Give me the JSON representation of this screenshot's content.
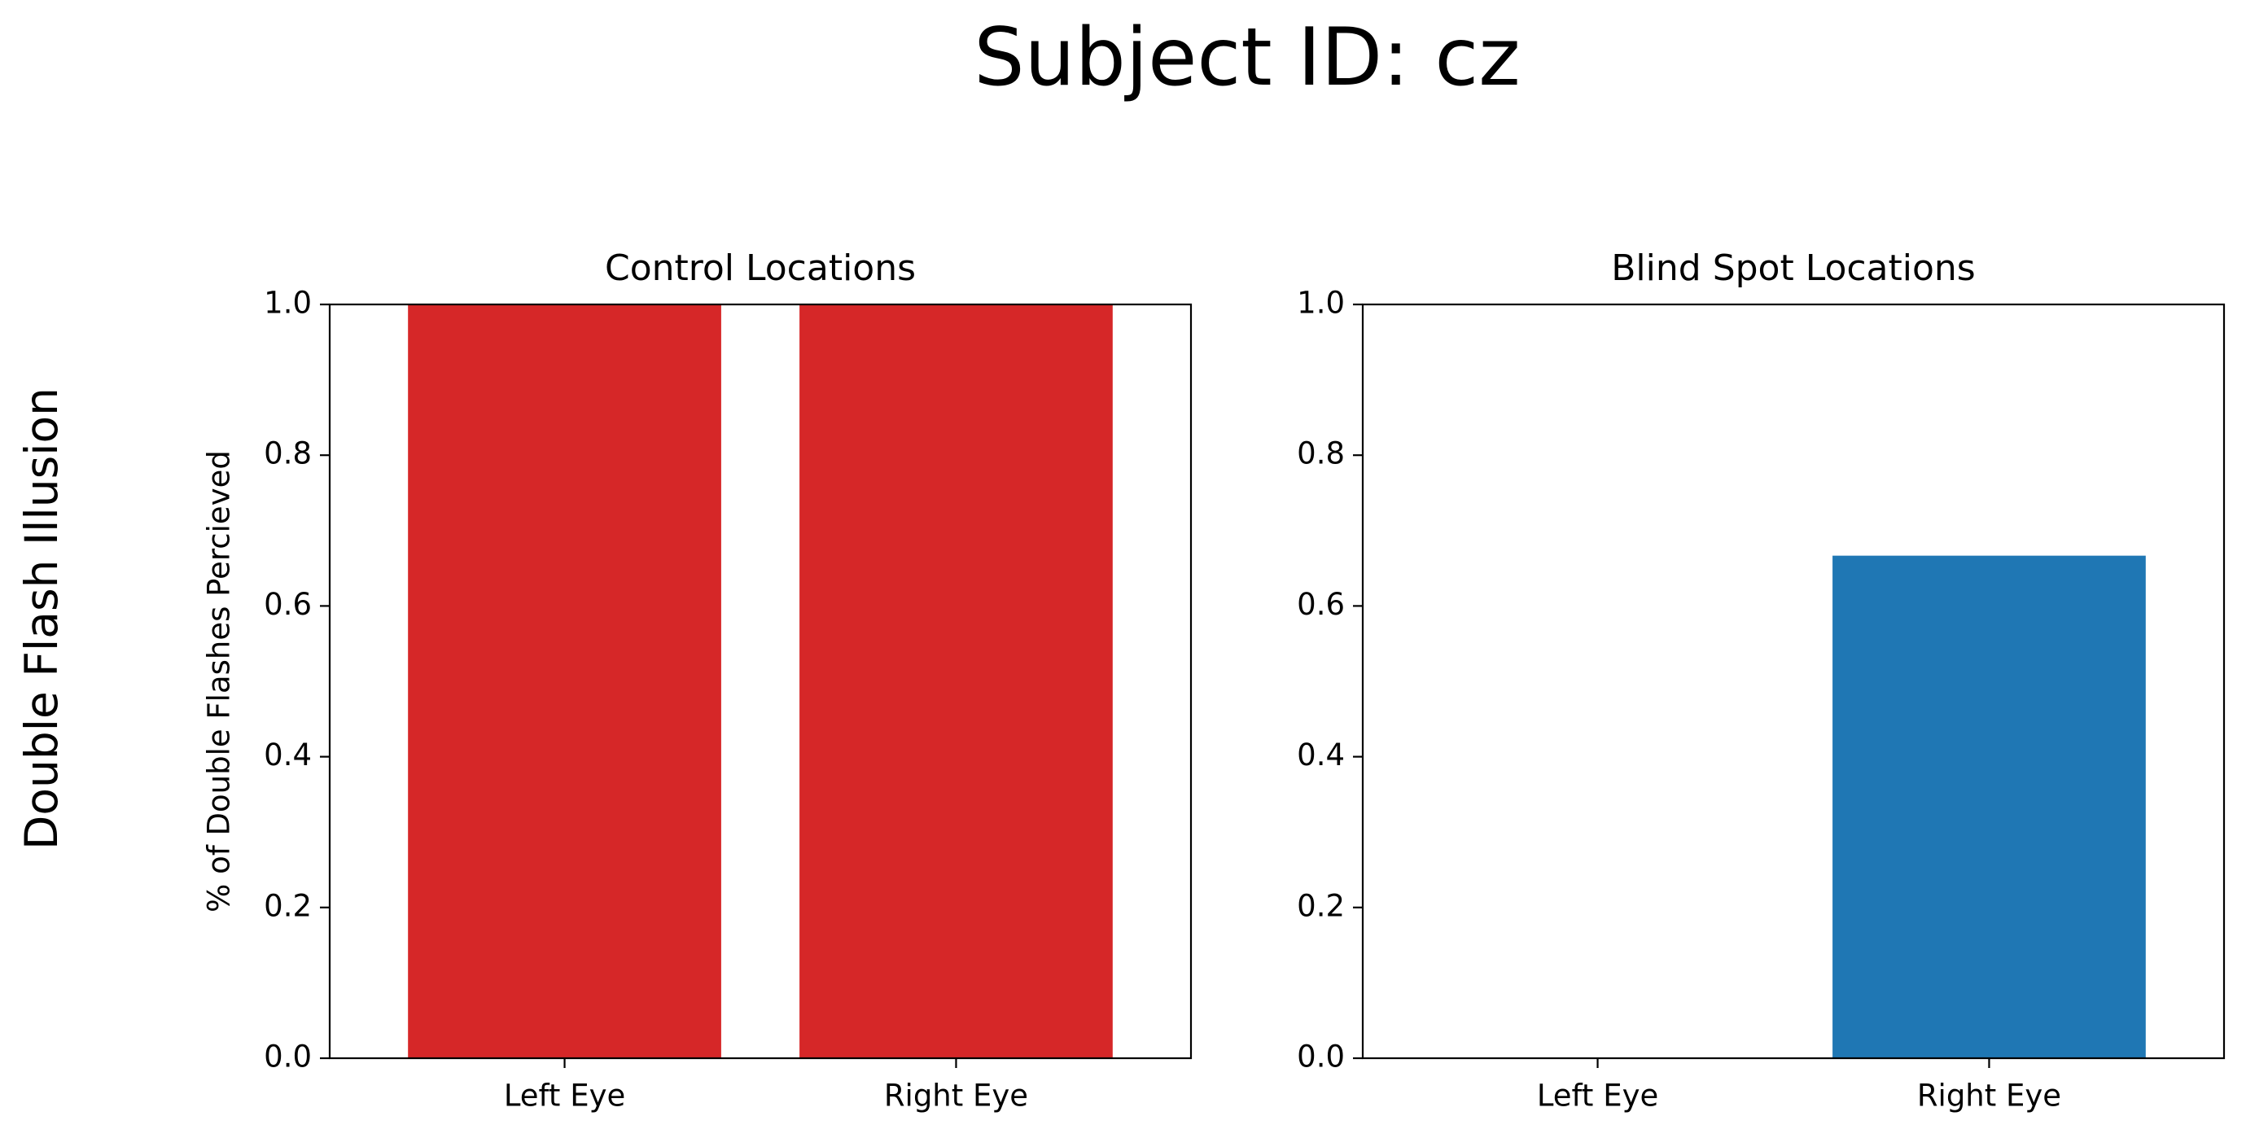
{
  "figure": {
    "suptitle": "Subject ID: cz",
    "row_label": "Double Flash Illusion"
  },
  "chart_data": [
    {
      "type": "bar",
      "title": "Control Locations",
      "xlabel": "",
      "ylabel": "% of Double Flashes Percieved",
      "categories": [
        "Left Eye",
        "Right Eye"
      ],
      "values": [
        1.0,
        1.0
      ],
      "color": "#d62728",
      "ylim": [
        0,
        1.0
      ],
      "yticks": [
        0.0,
        0.2,
        0.4,
        0.6,
        0.8,
        1.0
      ],
      "grid": false,
      "legend": "none"
    },
    {
      "type": "bar",
      "title": "Blind Spot Locations",
      "xlabel": "",
      "ylabel": "",
      "categories": [
        "Left Eye",
        "Right Eye"
      ],
      "values": [
        0.0,
        0.6667
      ],
      "color": "#1f77b4",
      "ylim": [
        0,
        1.0
      ],
      "yticks": [
        0.0,
        0.2,
        0.4,
        0.6,
        0.8,
        1.0
      ],
      "grid": false,
      "legend": "none"
    }
  ]
}
